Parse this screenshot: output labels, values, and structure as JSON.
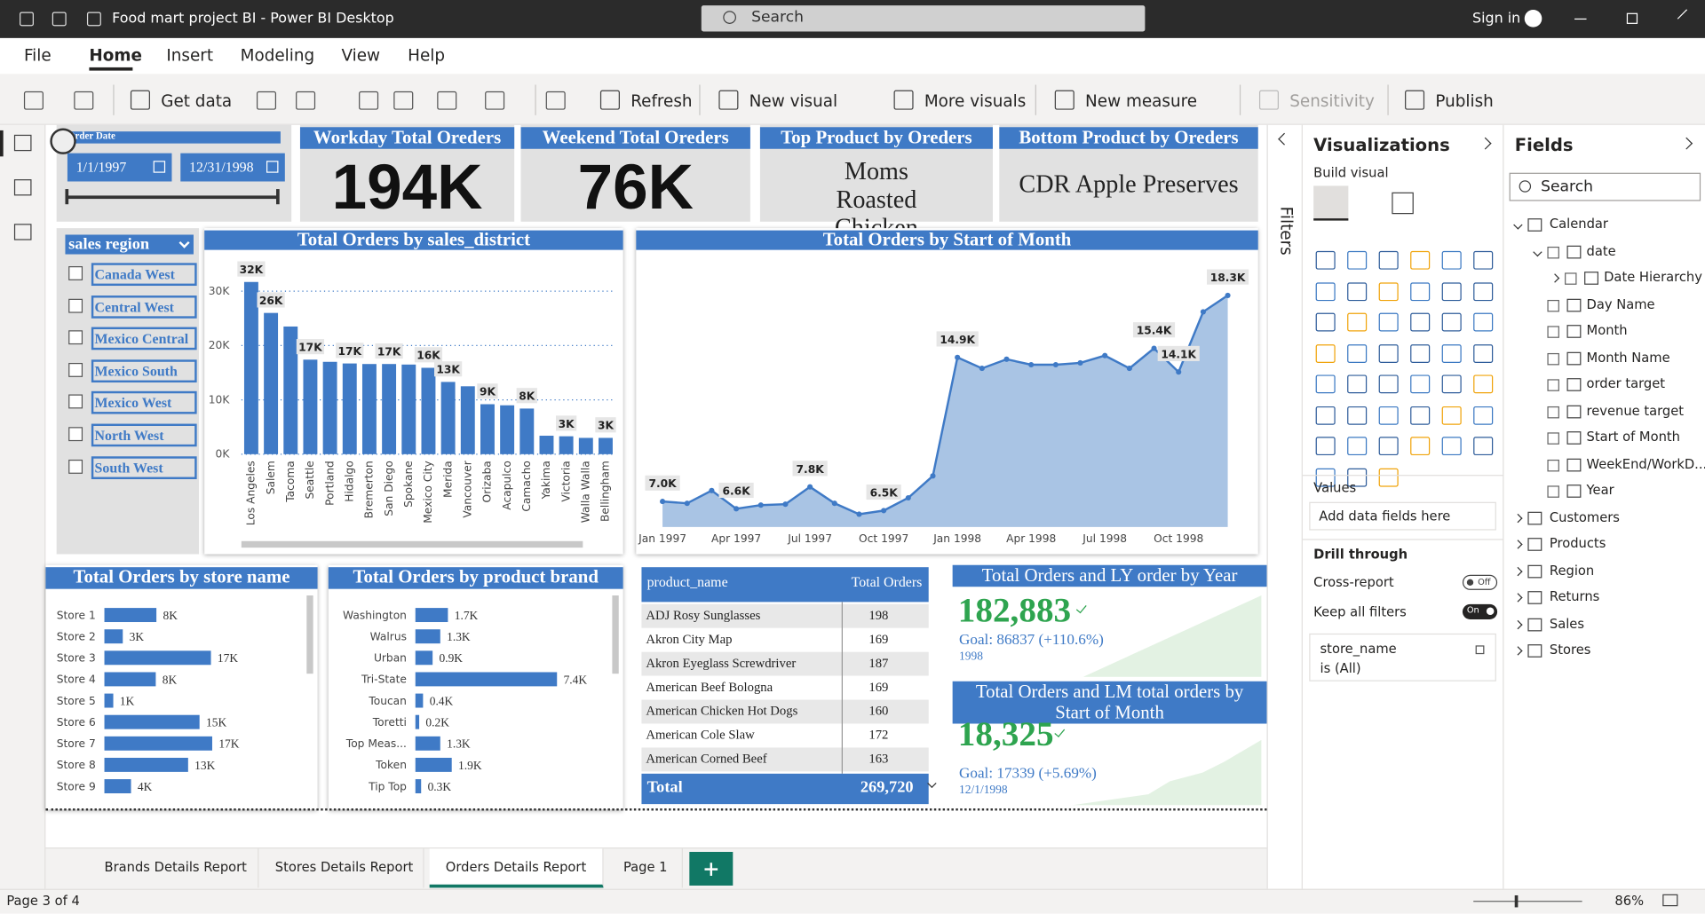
{
  "window": {
    "title": "Food mart project BI - Power BI Desktop",
    "search": "Search",
    "sign_in": "Sign in"
  },
  "menu": [
    "File",
    "Home",
    "Insert",
    "Modeling",
    "View",
    "Help"
  ],
  "menu_active": 1,
  "ribbon": [
    "Get data",
    "Refresh",
    "New visual",
    "More visuals",
    "New measure",
    "Sensitivity",
    "Publish"
  ],
  "date_slicer": {
    "label": "Order Date",
    "start": "1/1/1997",
    "end": "12/31/1998"
  },
  "cards": [
    {
      "title": "Workday Total Oreders",
      "value": "194K"
    },
    {
      "title": "Weekend Total Oreders",
      "value": "76K"
    },
    {
      "title": "Top Product by Oreders",
      "value": "Moms Roasted Chicken"
    },
    {
      "title": "Bottom Product by Oreders",
      "value": "CDR Apple Preserves"
    }
  ],
  "region_slicer": {
    "title": "sales region",
    "items": [
      "Canada West",
      "Central West",
      "Mexico Central",
      "Mexico South",
      "Mexico West",
      "North West",
      "South West"
    ]
  },
  "chart_data": [
    {
      "type": "bar",
      "title": "Total Orders by sales_district",
      "categories": [
        "Los Angeles",
        "Salem",
        "Tacoma",
        "Seattle",
        "Portland",
        "Hidalgo",
        "Bremerton",
        "San Diego",
        "Spokane",
        "Mexico City",
        "Merida",
        "Vancouver",
        "Orizaba",
        "Acapulco",
        "Camacho",
        "Yakima",
        "Victoria",
        "Walla Walla",
        "Bellingham"
      ],
      "values": [
        31700,
        26000,
        23500,
        17400,
        17000,
        16700,
        16600,
        16600,
        16500,
        15900,
        13300,
        12500,
        9200,
        9000,
        8400,
        3400,
        3300,
        3000,
        3000
      ],
      "value_labels": [
        "32K",
        "26K",
        null,
        "17K",
        null,
        "17K",
        null,
        "17K",
        null,
        "16K",
        "13K",
        null,
        "9K",
        null,
        "8K",
        null,
        "3K",
        null,
        "3K"
      ],
      "color": "#3f7ac6",
      "ylim": [
        0,
        35000
      ],
      "yticks": [
        {
          "value": 0,
          "label": "0K"
        },
        {
          "value": 10000,
          "label": "10K"
        },
        {
          "value": 20000,
          "label": "20K"
        },
        {
          "value": 30000,
          "label": "30K"
        }
      ],
      "grid": true
    },
    {
      "type": "area",
      "title": "Total Orders by Start of Month",
      "categories": [
        "Jan 1997",
        null,
        null,
        "Apr 1997",
        null,
        null,
        "Jul 1997",
        null,
        null,
        "Oct 1997",
        null,
        null,
        "Jan 1998",
        null,
        null,
        "Apr 1998",
        null,
        null,
        "Jul 1998",
        null,
        null,
        "Oct 1998",
        null,
        null
      ],
      "values": [
        7000,
        6900,
        7600,
        6600,
        6800,
        6850,
        7800,
        6900,
        6300,
        6500,
        7200,
        8400,
        14900,
        14300,
        14800,
        14500,
        14500,
        14600,
        15000,
        14300,
        15400,
        14100,
        17400,
        18300
      ],
      "value_labels": [
        "7.0K",
        null,
        null,
        "6.6K",
        null,
        null,
        "7.8K",
        null,
        null,
        "6.5K",
        null,
        null,
        "14.9K",
        null,
        null,
        null,
        null,
        null,
        null,
        null,
        "15.4K",
        "14.1K",
        null,
        "18.3K"
      ],
      "color": "#3f7ac6",
      "ylim": [
        5600,
        20200
      ]
    },
    {
      "type": "hbar",
      "title": "Total Orders by store name",
      "categories": [
        "Store 1",
        "Store 2",
        "Store 3",
        "Store 4",
        "Store 5",
        "Store 6",
        "Store 7",
        "Store 8",
        "Store 9"
      ],
      "values": [
        8200,
        2900,
        16800,
        8100,
        1400,
        15000,
        17000,
        13200,
        4200
      ],
      "value_labels": [
        "8K",
        "3K",
        "17K",
        "8K",
        "1K",
        "15K",
        "17K",
        "13K",
        "4K"
      ],
      "color": "#3f7ac6",
      "xlim": [
        0,
        30000
      ]
    },
    {
      "type": "hbar",
      "title": "Total Orders by product brand",
      "categories": [
        "Washington",
        "Walrus",
        "Urban",
        "Tri-State",
        "Toucan",
        "Toretti",
        "Top Meas...",
        "Token",
        "Tip Top"
      ],
      "values": [
        1700,
        1300,
        900,
        7400,
        400,
        200,
        1300,
        1900,
        300
      ],
      "value_labels": [
        "1.7K",
        "1.3K",
        "0.9K",
        "7.4K",
        "0.4K",
        "0.2K",
        "1.3K",
        "1.9K",
        "0.3K"
      ],
      "color": "#3f7ac6",
      "xlim": [
        0,
        10000
      ]
    }
  ],
  "table": {
    "columns": [
      "product_name",
      "Total Orders"
    ],
    "rows": [
      [
        "ADJ Rosy Sunglasses",
        198
      ],
      [
        "Akron City Map",
        169
      ],
      [
        "Akron Eyeglass Screwdriver",
        187
      ],
      [
        "American Beef Bologna",
        169
      ],
      [
        "American Chicken Hot Dogs",
        160
      ],
      [
        "American Cole Slaw",
        172
      ],
      [
        "American Corned Beef",
        163
      ]
    ],
    "total": [
      "Total",
      "269,720"
    ]
  },
  "kpis": [
    {
      "title": "Total Orders and LY order by Year",
      "value": "182,883",
      "goal": "Goal: 86837 (+110.6%)",
      "date": "1998"
    },
    {
      "title": "Total Orders and LM total orders by Start of Month",
      "value": "18,325",
      "goal": "Goal: 17339 (+5.69%)",
      "date": "12/1/1998"
    }
  ],
  "filters": "Filters",
  "visualizations": {
    "title": "Visualizations",
    "build": "Build visual",
    "values": "Values",
    "values_placeholder": "Add data fields here",
    "drill": "Drill through",
    "cross_report": "Cross-report",
    "cross_state": "Off",
    "keep_filters": "Keep all filters",
    "keep_state": "On",
    "filter_field": "store_name",
    "filter_value": "is (All)"
  },
  "fields": {
    "title": "Fields",
    "search": "Search",
    "tables": [
      {
        "name": "Calendar",
        "fields": [
          {
            "name": "date",
            "children": [
              "Date Hierarchy"
            ]
          },
          "Day Name",
          "Month",
          "Month Name",
          "order target",
          "revenue target",
          "Start of Month",
          "WeekEnd/WorkD...",
          "Year"
        ]
      },
      {
        "name": "Customers"
      },
      {
        "name": "Products"
      },
      {
        "name": "Region"
      },
      {
        "name": "Returns"
      },
      {
        "name": "Sales"
      },
      {
        "name": "Stores"
      }
    ]
  },
  "tabs": [
    "Brands Details Report",
    "Stores Details Report",
    "Orders Details Report",
    "Page 1"
  ],
  "tab_active": 2,
  "status": {
    "page": "Page 3 of 4",
    "zoom": "86%"
  }
}
